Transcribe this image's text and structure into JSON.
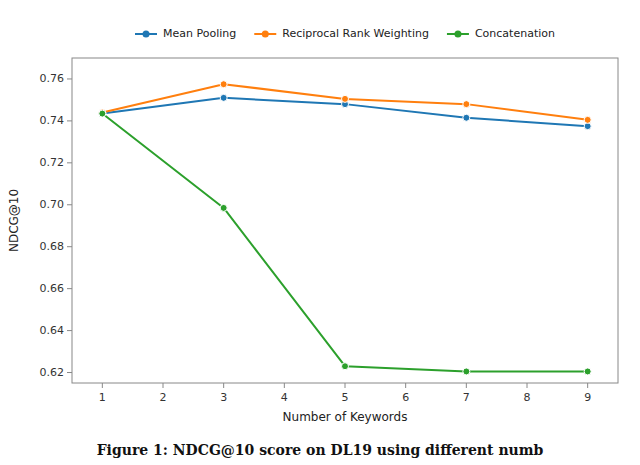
{
  "chart_data": {
    "type": "line",
    "caption": "Figure 1: NDCG@10 score on DL19 using different numb",
    "x_label": "Number of Keywords",
    "y_label": "NDCG@10",
    "x": [
      1,
      3,
      5,
      7,
      9
    ],
    "series": [
      {
        "name": "Mean Pooling",
        "color": "#1f77b4",
        "values": [
          0.7435,
          0.751,
          0.748,
          0.7415,
          0.7375
        ]
      },
      {
        "name": "Reciprocal Rank Weighting",
        "color": "#ff7f0e",
        "values": [
          0.744,
          0.7575,
          0.7505,
          0.748,
          0.7405
        ]
      },
      {
        "name": "Concatenation",
        "color": "#2ca02c",
        "values": [
          0.7435,
          0.6985,
          0.623,
          0.6205,
          0.6205
        ]
      }
    ],
    "marker": "circle",
    "xlim": [
      0.5,
      9.5
    ],
    "ylim": [
      0.615,
      0.77
    ],
    "xticks": [
      1,
      2,
      3,
      4,
      5,
      6,
      7,
      8,
      9
    ],
    "yticks": [
      0.62,
      0.64,
      0.66,
      0.68,
      {
        "value": 0.7,
        "label": "0.70"
      },
      0.72,
      0.74,
      0.76
    ],
    "legend": "top",
    "grid": false
  }
}
